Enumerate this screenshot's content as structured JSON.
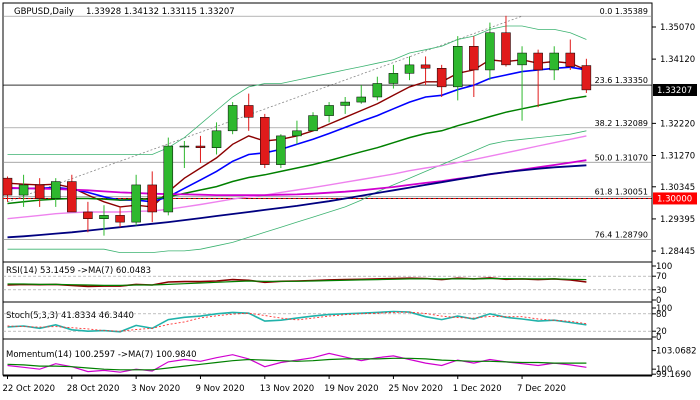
{
  "header": {
    "symbol_label": "GBPUSD,Daily",
    "ohlc_label": "1.33928 1.34132 1.33115 1.33207"
  },
  "colors": {
    "bull": "#2eb82e",
    "bear": "#e01b1b",
    "ma_dark_red": "#8b0000",
    "ma_blue": "#0000ff",
    "ma_green": "#008000",
    "ma_violet": "#ee82ee",
    "ma_magenta": "#d000d0",
    "ma_navy": "#000080",
    "bollinger": "#3cb371",
    "price_tag_bg": "#000000",
    "level_tag_bg": "#ff0000"
  },
  "chart_data": [
    {
      "type": "candlestick",
      "name": "price",
      "ylim": [
        1.2818,
        1.3575
      ],
      "y_ticks": [
        "1.35070",
        "1.34120",
        "1.33207",
        "1.32220",
        "1.31270",
        "1.30345",
        "1.29395",
        "1.28445"
      ],
      "y_tick_values": [
        1.3507,
        1.3412,
        1.33207,
        1.3222,
        1.3127,
        1.30345,
        1.29395,
        1.28445
      ],
      "x_ticks": [
        "22 Oct 2020",
        "28 Oct 2020",
        "3 Nov 2020",
        "9 Nov 2020",
        "13 Nov 2020",
        "19 Nov 2020",
        "25 Nov 2020",
        "1 Dec 2020",
        "7 Dec 2020"
      ],
      "x_tick_index": [
        0,
        4,
        8,
        12,
        16,
        20,
        24,
        28,
        32
      ],
      "candles": [
        [
          1.306,
          1.3065,
          1.299,
          1.301
        ],
        [
          1.301,
          1.307,
          1.2975,
          1.304
        ],
        [
          1.304,
          1.306,
          1.2975,
          1.3
        ],
        [
          1.3,
          1.306,
          1.2975,
          1.305
        ],
        [
          1.305,
          1.307,
          1.296,
          1.296
        ],
        [
          1.296,
          1.299,
          1.29,
          1.294
        ],
        [
          1.294,
          1.298,
          1.289,
          1.295
        ],
        [
          1.295,
          1.2975,
          1.2915,
          1.293
        ],
        [
          1.293,
          1.307,
          1.292,
          1.304
        ],
        [
          1.304,
          1.308,
          1.293,
          1.296
        ],
        [
          1.296,
          1.318,
          1.295,
          1.3155
        ],
        [
          1.3155,
          1.317,
          1.309,
          1.3155
        ],
        [
          1.3155,
          1.3185,
          1.3105,
          1.315
        ],
        [
          1.315,
          1.3225,
          1.313,
          1.32
        ],
        [
          1.32,
          1.3285,
          1.319,
          1.3275
        ],
        [
          1.3275,
          1.331,
          1.32,
          1.324
        ],
        [
          1.324,
          1.325,
          1.309,
          1.31
        ],
        [
          1.31,
          1.319,
          1.309,
          1.3185
        ],
        [
          1.3185,
          1.323,
          1.316,
          1.32
        ],
        [
          1.32,
          1.3255,
          1.32,
          1.3245
        ],
        [
          1.3245,
          1.3285,
          1.3225,
          1.3275
        ],
        [
          1.3275,
          1.33,
          1.325,
          1.3285
        ],
        [
          1.3285,
          1.3335,
          1.328,
          1.33
        ],
        [
          1.33,
          1.336,
          1.329,
          1.334
        ],
        [
          1.334,
          1.3395,
          1.3325,
          1.337
        ],
        [
          1.337,
          1.342,
          1.335,
          1.3395
        ],
        [
          1.3395,
          1.342,
          1.3335,
          1.3385
        ],
        [
          1.3385,
          1.3395,
          1.33,
          1.333
        ],
        [
          1.333,
          1.348,
          1.329,
          1.345
        ],
        [
          1.345,
          1.348,
          1.33,
          1.338
        ],
        [
          1.338,
          1.352,
          1.335,
          1.349
        ],
        [
          1.349,
          1.354,
          1.339,
          1.3395
        ],
        [
          1.3395,
          1.345,
          1.323,
          1.343
        ],
        [
          1.343,
          1.344,
          1.327,
          1.338
        ],
        [
          1.338,
          1.345,
          1.335,
          1.343
        ],
        [
          1.343,
          1.347,
          1.338,
          1.339
        ],
        [
          1.3393,
          1.3413,
          1.3312,
          1.3321
        ]
      ],
      "moving_averages": [
        {
          "color_key": "ma_dark_red",
          "values": [
            1.3045,
            1.3042,
            1.304,
            1.3042,
            1.3032,
            1.301,
            1.299,
            1.2975,
            1.298,
            1.2975,
            1.302,
            1.306,
            1.309,
            1.312,
            1.316,
            1.3185,
            1.317,
            1.3175,
            1.3185,
            1.32,
            1.322,
            1.324,
            1.326,
            1.328,
            1.3305,
            1.333,
            1.3345,
            1.3345,
            1.337,
            1.338,
            1.341,
            1.3405,
            1.341,
            1.34,
            1.3405,
            1.34,
            1.338
          ]
        },
        {
          "color_key": "ma_blue",
          "values": [
            1.303,
            1.303,
            1.303,
            1.3032,
            1.3028,
            1.3018,
            1.3005,
            1.2995,
            1.2995,
            1.299,
            1.3005,
            1.303,
            1.3055,
            1.308,
            1.311,
            1.313,
            1.3135,
            1.3145,
            1.316,
            1.3175,
            1.3192,
            1.321,
            1.3228,
            1.3245,
            1.3265,
            1.3285,
            1.33,
            1.3305,
            1.3322,
            1.3335,
            1.3355,
            1.3365,
            1.3375,
            1.338,
            1.3385,
            1.3388,
            1.338
          ]
        },
        {
          "color_key": "ma_green",
          "values": [
            1.2985,
            1.299,
            1.2995,
            1.2998,
            1.3,
            1.3,
            1.2998,
            1.2995,
            1.2998,
            1.2998,
            1.3005,
            1.3015,
            1.3025,
            1.3035,
            1.305,
            1.3062,
            1.307,
            1.308,
            1.309,
            1.31,
            1.3112,
            1.3125,
            1.3138,
            1.315,
            1.3165,
            1.318,
            1.3192,
            1.32,
            1.3215,
            1.3228,
            1.3242,
            1.3255,
            1.3265,
            1.3275,
            1.3285,
            1.3295,
            1.3302
          ]
        },
        {
          "color_key": "ma_violet",
          "values": [
            1.294,
            1.2945,
            1.295,
            1.2955,
            1.2958,
            1.296,
            1.296,
            1.296,
            1.2962,
            1.2963,
            1.2968,
            1.2975,
            1.2982,
            1.299,
            1.2998,
            1.3005,
            1.301,
            1.3018,
            1.3025,
            1.3032,
            1.304,
            1.3048,
            1.3056,
            1.3064,
            1.3072,
            1.3082,
            1.309,
            1.3097,
            1.3106,
            1.3115,
            1.3125,
            1.3135,
            1.3145,
            1.3155,
            1.3165,
            1.3175,
            1.3185
          ]
        },
        {
          "color_key": "ma_magenta",
          "values": [
            1.3032,
            1.303,
            1.3029,
            1.3028,
            1.3026,
            1.3024,
            1.3021,
            1.3018,
            1.3016,
            1.3014,
            1.3013,
            1.3012,
            1.3011,
            1.301,
            1.301,
            1.301,
            1.301,
            1.3011,
            1.3012,
            1.3014,
            1.3017,
            1.302,
            1.3024,
            1.3029,
            1.3034,
            1.304,
            1.3046,
            1.3051,
            1.3058,
            1.3064,
            1.3071,
            1.3078,
            1.3085,
            1.3092,
            1.3099,
            1.3106,
            1.3113
          ]
        },
        {
          "color_key": "ma_navy",
          "values": [
            1.2885,
            1.2888,
            1.2892,
            1.2896,
            1.29,
            1.2905,
            1.291,
            1.2915,
            1.292,
            1.2925,
            1.293,
            1.2936,
            1.2942,
            1.2948,
            1.2954,
            1.296,
            1.2966,
            1.2972,
            1.2978,
            1.2985,
            1.2992,
            1.3,
            1.3008,
            1.3016,
            1.3024,
            1.3032,
            1.304,
            1.3048,
            1.3056,
            1.3064,
            1.3072,
            1.3078,
            1.3083,
            1.3088,
            1.3092,
            1.3095,
            1.3098
          ]
        }
      ],
      "bollinger_bands": {
        "color_key": "bollinger",
        "upper": [
          1.313,
          1.313,
          1.313,
          1.313,
          1.313,
          1.313,
          1.313,
          1.313,
          1.313,
          1.313,
          1.315,
          1.318,
          1.322,
          1.326,
          1.33,
          1.333,
          1.334,
          1.334,
          1.335,
          1.336,
          1.337,
          1.338,
          1.339,
          1.34,
          1.341,
          1.343,
          1.344,
          1.345,
          1.347,
          1.348,
          1.35,
          1.351,
          1.351,
          1.35,
          1.35,
          1.349,
          1.347
        ],
        "lower": [
          1.285,
          1.285,
          1.285,
          1.285,
          1.285,
          1.285,
          1.285,
          1.284,
          1.284,
          1.284,
          1.2845,
          1.2845,
          1.285,
          1.286,
          1.287,
          1.2885,
          1.29,
          1.2915,
          1.293,
          1.2945,
          1.296,
          1.2975,
          1.2995,
          1.302,
          1.304,
          1.306,
          1.308,
          1.31,
          1.312,
          1.314,
          1.316,
          1.317,
          1.3175,
          1.318,
          1.3185,
          1.319,
          1.32
        ]
      },
      "fib_levels": [
        {
          "label": "0.0 1.35389",
          "value": 1.35389
        },
        {
          "label": "23.6 1.33350",
          "value": 1.3335
        },
        {
          "label": "38.2 1.32089",
          "value": 1.32089
        },
        {
          "label": "50.0 1.31070",
          "value": 1.3107
        },
        {
          "label": "61.8 1.30051",
          "value": 1.30051
        },
        {
          "label": "76.4 1.28790",
          "value": 1.2879
        }
      ],
      "trendline": {
        "from": [
          0,
          1.299
        ],
        "to": [
          32,
          1.3539
        ]
      },
      "horizontal_lines": [
        1.3335,
        1.3
      ],
      "price_tag": {
        "label": "1.33207",
        "value": 1.33207
      },
      "level_tag": {
        "label": "1.30000",
        "value": 1.3
      }
    },
    {
      "type": "line",
      "name": "rsi",
      "title": "RSI(14) 53.1459 ->MA(7) 60.0483",
      "ylim": [
        0,
        100
      ],
      "y_ticks": [
        "100",
        "70",
        "30",
        "0"
      ],
      "y_tick_values": [
        100,
        70,
        30,
        0
      ],
      "levels": [
        70,
        30
      ],
      "series": [
        {
          "color_key": "ma_dark_red",
          "values": [
            44,
            46,
            45,
            46,
            43,
            40,
            41,
            41,
            46,
            44,
            53,
            54,
            54,
            56,
            60,
            58,
            52,
            55,
            56,
            57,
            59,
            60,
            61,
            62,
            63,
            64,
            63,
            60,
            64,
            62,
            65,
            61,
            62,
            60,
            62,
            59,
            53
          ]
        },
        {
          "color_key": "ma_green",
          "values": [
            47,
            47,
            46,
            46,
            45,
            44,
            43,
            43,
            44,
            44,
            46,
            48,
            50,
            52,
            54,
            56,
            55,
            55,
            55,
            56,
            57,
            58,
            59,
            60,
            61,
            62,
            62,
            62,
            62,
            62,
            63,
            63,
            62,
            62,
            62,
            61,
            60
          ]
        }
      ]
    },
    {
      "type": "line",
      "name": "stochastic",
      "title": "Stoch(5,3,3) 41.8334 46.3440",
      "ylim": [
        0,
        100
      ],
      "y_ticks": [
        "100",
        "80",
        "20",
        "0"
      ],
      "y_tick_values": [
        100,
        80,
        20,
        0
      ],
      "levels": [
        80,
        20
      ],
      "series": [
        {
          "color_key": "stoch_main",
          "values": [
            35,
            38,
            30,
            42,
            25,
            20,
            22,
            18,
            40,
            30,
            60,
            68,
            72,
            80,
            85,
            82,
            55,
            58,
            65,
            72,
            78,
            80,
            82,
            85,
            88,
            86,
            70,
            60,
            72,
            62,
            80,
            68,
            62,
            55,
            58,
            50,
            42
          ]
        },
        {
          "color_key": "stoch_signal",
          "values": [
            38,
            36,
            34,
            36,
            32,
            28,
            22,
            20,
            26,
            30,
            43,
            52,
            66,
            73,
            79,
            82,
            74,
            65,
            59,
            65,
            72,
            77,
            80,
            82,
            85,
            86,
            81,
            72,
            67,
            65,
            71,
            70,
            70,
            62,
            58,
            54,
            46
          ]
        }
      ]
    },
    {
      "type": "line",
      "name": "momentum",
      "title": "Momentum(14) 100.2597 ->MA(7) 100.9840",
      "ylim": [
        99.2,
        103.5
      ],
      "y_ticks": [
        "103.0682",
        "100",
        "99.1690"
      ],
      "y_tick_values": [
        103.0682,
        100,
        99.169
      ],
      "series": [
        {
          "color_key": "ma_magenta",
          "values": [
            100.6,
            100.3,
            100.0,
            100.9,
            100.4,
            99.6,
            99.8,
            99.5,
            100.0,
            99.7,
            101.2,
            101.6,
            101.3,
            101.9,
            102.4,
            101.7,
            100.4,
            101.1,
            101.5,
            101.9,
            102.6,
            102.0,
            101.4,
            101.9,
            102.2,
            101.6,
            101.0,
            100.6,
            101.5,
            101.0,
            101.6,
            101.2,
            100.9,
            100.6,
            101.0,
            100.7,
            100.3
          ]
        },
        {
          "color_key": "ma_green",
          "values": [
            100.8,
            100.7,
            100.5,
            100.5,
            100.4,
            100.2,
            100.0,
            99.9,
            99.9,
            99.9,
            100.2,
            100.5,
            100.8,
            101.1,
            101.4,
            101.6,
            101.5,
            101.4,
            101.3,
            101.4,
            101.6,
            101.7,
            101.7,
            101.7,
            101.8,
            101.8,
            101.7,
            101.5,
            101.4,
            101.3,
            101.3,
            101.2,
            101.1,
            101.1,
            101.0,
            101.0,
            101.0
          ]
        }
      ]
    }
  ]
}
